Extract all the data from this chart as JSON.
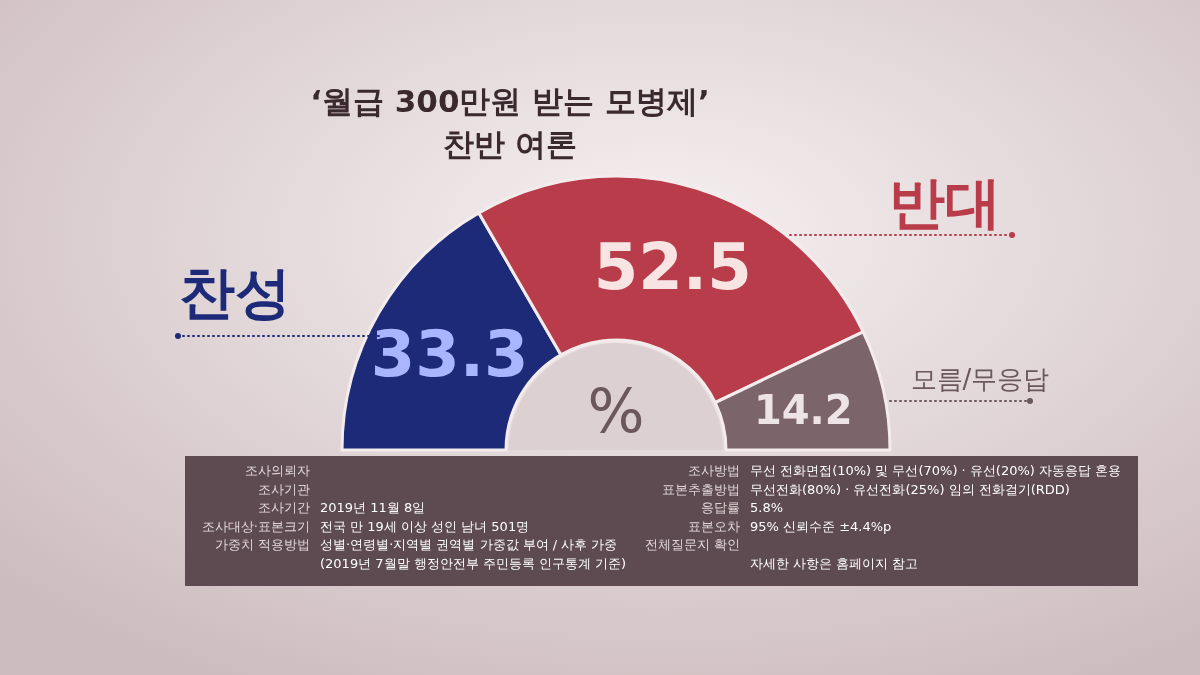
{
  "chart_data": {
    "type": "donut",
    "title": "‘월급 300만원 받는 모병제’",
    "subtitle": "찬반 여론",
    "categories": [
      "찬성",
      "반대",
      "모름/무응답"
    ],
    "values": [
      33.3,
      52.5,
      14.2
    ],
    "colors": [
      "#1c2a78",
      "#b83c4a",
      "#7c646b"
    ],
    "data_labels": true,
    "annotations": [
      "%",
      "조사의뢰자",
      "조사기관",
      "조사기간",
      "2019년 11월 8일",
      "조사대상·표본크기",
      "전국 만 19세 이상 성인 남녀 501명",
      "가중치 적용방법",
      "성별·연령별·지역별 권역별 가중값 부여 / 사후 가중",
      "(2019년 7월말 행정안전부 주민등록 인구통계 기준)",
      "조사방법",
      "무선 전화면접(10%) 및 무선(70%) · 유선(20%) 자동응답 혼용",
      "표본추출방법",
      "무선전화(80%) · 유선전화(25%) 임의 전화걸기(RDD)",
      "응답률",
      "5.8%",
      "표본오차",
      "95% 신뢰수준 ±4.4%p",
      "전체질문지 확인",
      "자세한 사항은 홈페이지 참고"
    ]
  }
}
